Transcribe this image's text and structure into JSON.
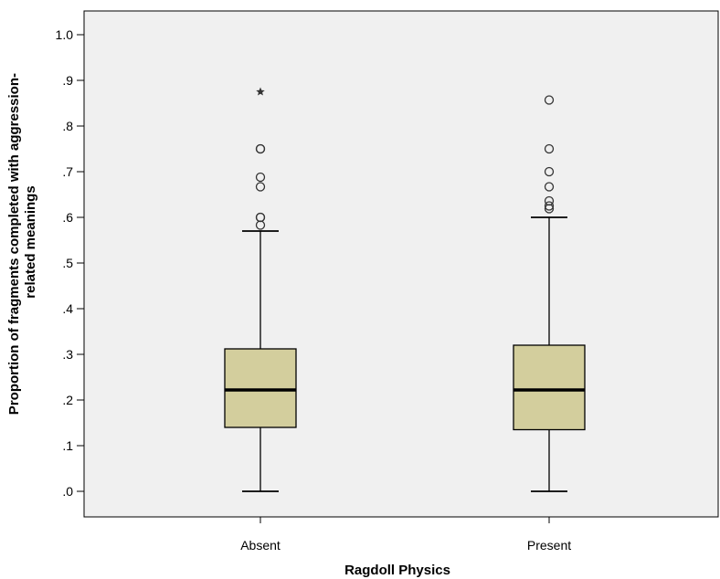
{
  "chart_data": {
    "type": "boxplot",
    "xlabel": "Ragdoll Physics",
    "ylabel_lines": [
      "Proportion of fragments completed with aggression-",
      "related meanings"
    ],
    "ylim": [
      0,
      1.05
    ],
    "y_ticks": [
      0.0,
      0.1,
      0.2,
      0.3,
      0.4,
      0.5,
      0.6,
      0.7,
      0.8,
      0.9,
      1.0
    ],
    "y_tick_labels": [
      ".0",
      ".1",
      ".2",
      ".3",
      ".4",
      ".5",
      ".6",
      ".7",
      ".8",
      ".9",
      "1.0"
    ],
    "categories": [
      "Absent",
      "Present"
    ],
    "boxes": [
      {
        "category": "Absent",
        "whisker_low": 0.0,
        "q1": 0.14,
        "median": 0.222,
        "q3": 0.312,
        "whisker_high": 0.57,
        "outliers": [
          0.583,
          0.6,
          0.6,
          0.667,
          0.688,
          0.75,
          0.75
        ],
        "extremes": [
          0.875
        ]
      },
      {
        "category": "Present",
        "whisker_low": 0.0,
        "q1": 0.135,
        "median": 0.222,
        "q3": 0.32,
        "whisker_high": 0.6,
        "outliers": [
          0.619,
          0.625,
          0.636,
          0.667,
          0.7,
          0.75,
          0.857
        ],
        "extremes": []
      }
    ],
    "colors": {
      "plot_background": "#f0f0f0",
      "box_fill": "#d3ce9d",
      "line": "#000000"
    }
  }
}
